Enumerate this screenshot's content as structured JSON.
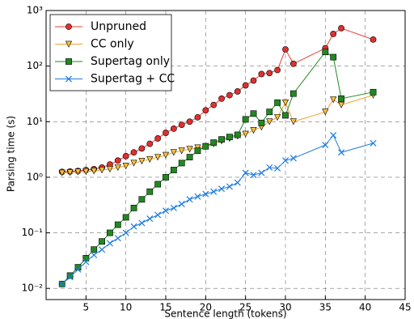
{
  "chart_data": {
    "type": "line",
    "x_label": "Sentence length (tokens)",
    "y_label": "Parsing time (s)",
    "x": [
      2,
      3,
      4,
      5,
      6,
      7,
      8,
      9,
      10,
      11,
      12,
      13,
      14,
      15,
      16,
      17,
      18,
      19,
      20,
      21,
      22,
      23,
      24,
      25,
      26,
      27,
      28,
      29,
      30,
      31,
      35,
      36,
      37,
      41
    ],
    "series": [
      {
        "name": "Unpruned",
        "color": "#e8413a",
        "marker_color": "#e03030",
        "marker": "circle",
        "values": [
          1.25,
          1.27,
          1.3,
          1.35,
          1.4,
          1.5,
          1.7,
          2.0,
          2.4,
          2.8,
          3.3,
          4.0,
          5.0,
          6.3,
          7.5,
          8.8,
          10,
          12,
          16,
          20,
          26,
          30,
          35,
          45,
          55,
          72,
          75,
          85,
          200,
          110,
          210,
          380,
          480,
          300
        ]
      },
      {
        "name": "CC only",
        "color": "#f5a030",
        "marker_color": "#f8c040",
        "marker": "triangle-down",
        "values": [
          1.2,
          1.22,
          1.25,
          1.27,
          1.3,
          1.35,
          1.4,
          1.5,
          1.6,
          1.8,
          1.95,
          2.1,
          2.3,
          2.5,
          2.8,
          3.0,
          3.2,
          3.4,
          3.6,
          4.0,
          4.5,
          5.0,
          5.5,
          6.0,
          7.0,
          8.0,
          10,
          12,
          22,
          10,
          15,
          25,
          20,
          30
        ]
      },
      {
        "name": "Supertag only",
        "color": "#1f8a1f",
        "marker_color": "#1f8a1f",
        "marker": "square",
        "values": [
          0.012,
          0.017,
          0.024,
          0.035,
          0.05,
          0.07,
          0.1,
          0.14,
          0.19,
          0.28,
          0.4,
          0.55,
          0.75,
          1.0,
          1.35,
          1.8,
          2.3,
          3.0,
          3.6,
          4.2,
          4.8,
          5.3,
          5.8,
          11,
          14,
          9.5,
          15,
          22,
          13,
          32,
          180,
          145,
          26,
          34
        ]
      },
      {
        "name": "Supertag + CC",
        "color": "#1e7be0",
        "marker_color": "#1e7be0",
        "marker": "x",
        "values": [
          0.012,
          0.016,
          0.022,
          0.03,
          0.04,
          0.05,
          0.065,
          0.08,
          0.1,
          0.13,
          0.15,
          0.18,
          0.21,
          0.25,
          0.28,
          0.33,
          0.4,
          0.45,
          0.5,
          0.55,
          0.62,
          0.68,
          0.8,
          1.2,
          1.1,
          1.2,
          1.5,
          1.45,
          2.0,
          2.2,
          3.8,
          5.7,
          2.8,
          4.1
        ]
      }
    ],
    "xlim": [
      0,
      45
    ],
    "xticks": [
      5,
      10,
      15,
      20,
      25,
      30,
      35,
      40,
      45
    ],
    "ylim": [
      0.0063,
      1000
    ],
    "yticks": [
      {
        "value": 0.01,
        "label": "10⁻²"
      },
      {
        "value": 0.1,
        "label": "10⁻¹"
      },
      {
        "value": 1,
        "label": "10⁰"
      },
      {
        "value": 10,
        "label": "10¹"
      },
      {
        "value": 100,
        "label": "10²"
      },
      {
        "value": 1000,
        "label": "10³"
      }
    ],
    "log_y": true,
    "grid": true,
    "legend_loc": "upper left"
  }
}
